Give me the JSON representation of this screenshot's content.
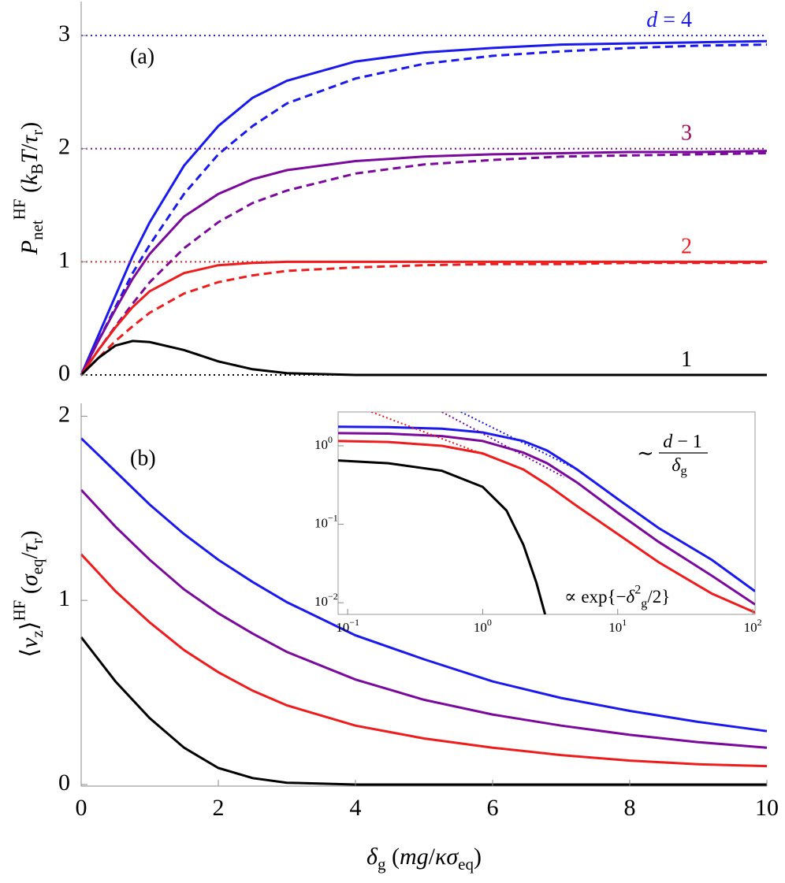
{
  "chart_data": [
    {
      "type": "line",
      "panel_label": "(a)",
      "y_title": [
        {
          "text": "P",
          "style": "italic"
        },
        {
          "text": "net",
          "style": "sub"
        },
        {
          "text": "HF",
          "style": "sup"
        },
        {
          "text": " (",
          "style": "plain"
        },
        {
          "text": "k",
          "style": "italic"
        },
        {
          "text": "B",
          "style": "sub"
        },
        {
          "text": "T",
          "style": "italic"
        },
        {
          "text": "/",
          "style": "plain"
        },
        {
          "text": "τ",
          "style": "italic"
        },
        {
          "text": "r",
          "style": "sub"
        },
        {
          "text": ")",
          "style": "plain"
        }
      ],
      "xlim": [
        0,
        10
      ],
      "ylim": [
        0,
        3.3
      ],
      "yticks": [
        0,
        1,
        2,
        3
      ],
      "x": [
        0,
        0.25,
        0.5,
        0.75,
        1,
        1.5,
        2,
        2.5,
        3,
        4,
        5,
        6,
        7,
        8,
        9,
        10
      ],
      "series": [
        {
          "label": [
            {
              "text": "d",
              "style": "italic"
            },
            {
              "text": " = 4",
              "style": "plain"
            }
          ],
          "color": "#1a1aee",
          "label_color": "#1a1aee",
          "limit": 3,
          "values": [
            0,
            0.35,
            0.7,
            1.05,
            1.35,
            1.85,
            2.2,
            2.45,
            2.6,
            2.77,
            2.85,
            2.89,
            2.92,
            2.93,
            2.94,
            2.95
          ],
          "dashed_values": [
            0,
            0.3,
            0.6,
            0.9,
            1.15,
            1.6,
            1.95,
            2.2,
            2.4,
            2.62,
            2.75,
            2.82,
            2.86,
            2.89,
            2.91,
            2.92
          ]
        },
        {
          "label": [
            {
              "text": "3",
              "style": "plain"
            }
          ],
          "color": "#7b0a9c",
          "label_color": "#9c0a5a",
          "limit": 2,
          "values": [
            0,
            0.3,
            0.58,
            0.85,
            1.07,
            1.4,
            1.6,
            1.73,
            1.81,
            1.89,
            1.93,
            1.95,
            1.96,
            1.97,
            1.97,
            1.98
          ],
          "dashed_values": [
            0,
            0.22,
            0.43,
            0.63,
            0.82,
            1.12,
            1.35,
            1.52,
            1.63,
            1.78,
            1.86,
            1.9,
            1.93,
            1.94,
            1.95,
            1.96
          ]
        },
        {
          "label": [
            {
              "text": "2",
              "style": "plain"
            }
          ],
          "color": "#ee1c1c",
          "label_color": "#ee1c1c",
          "limit": 1,
          "values": [
            0,
            0.22,
            0.42,
            0.6,
            0.74,
            0.9,
            0.97,
            0.99,
            1,
            1,
            1,
            1,
            1,
            1,
            1,
            1
          ],
          "dashed_values": [
            0,
            0.15,
            0.3,
            0.43,
            0.55,
            0.72,
            0.82,
            0.88,
            0.92,
            0.95,
            0.97,
            0.98,
            0.98,
            0.99,
            0.99,
            0.99
          ]
        },
        {
          "label": [
            {
              "text": "1",
              "style": "plain"
            }
          ],
          "color": "#000000",
          "label_color": "#000000",
          "limit": 0,
          "values": [
            0,
            0.15,
            0.26,
            0.3,
            0.29,
            0.22,
            0.12,
            0.05,
            0.015,
            0,
            0,
            0,
            0,
            0,
            0,
            0
          ]
        }
      ]
    },
    {
      "type": "line",
      "panel_label": "(b)",
      "y_title": [
        {
          "text": "⟨",
          "style": "plain"
        },
        {
          "text": "v",
          "style": "italic"
        },
        {
          "text": "z",
          "style": "sub"
        },
        {
          "text": "⟩",
          "style": "plain"
        },
        {
          "text": "HF",
          "style": "sup"
        },
        {
          "text": "  (",
          "style": "plain"
        },
        {
          "text": "σ",
          "style": "italic"
        },
        {
          "text": "eq",
          "style": "sub"
        },
        {
          "text": "/",
          "style": "plain"
        },
        {
          "text": "τ",
          "style": "italic"
        },
        {
          "text": "r",
          "style": "sub"
        },
        {
          "text": ")",
          "style": "plain"
        }
      ],
      "x_title": [
        {
          "text": "δ",
          "style": "italic"
        },
        {
          "text": "g",
          "style": "sub"
        },
        {
          "text": " (",
          "style": "plain"
        },
        {
          "text": "mg",
          "style": "italic"
        },
        {
          "text": "/",
          "style": "plain"
        },
        {
          "text": "κσ",
          "style": "italic"
        },
        {
          "text": "eq",
          "style": "sub"
        },
        {
          "text": ")",
          "style": "plain"
        }
      ],
      "xlim": [
        0,
        10
      ],
      "ylim": [
        0,
        2.07
      ],
      "xticks": [
        0,
        2,
        4,
        6,
        8,
        10
      ],
      "yticks": [
        0,
        1,
        2
      ],
      "x": [
        0,
        0.5,
        1,
        1.5,
        2,
        2.5,
        3,
        4,
        5,
        6,
        7,
        8,
        9,
        10
      ],
      "series": [
        {
          "color": "#1a1aee",
          "values": [
            1.88,
            1.7,
            1.52,
            1.36,
            1.22,
            1.1,
            0.99,
            0.81,
            0.68,
            0.56,
            0.47,
            0.4,
            0.34,
            0.29
          ]
        },
        {
          "color": "#7b0a9c",
          "values": [
            1.6,
            1.4,
            1.22,
            1.06,
            0.93,
            0.82,
            0.72,
            0.57,
            0.46,
            0.38,
            0.32,
            0.27,
            0.23,
            0.2
          ]
        },
        {
          "color": "#ee1c1c",
          "values": [
            1.25,
            1.05,
            0.88,
            0.73,
            0.61,
            0.51,
            0.43,
            0.32,
            0.25,
            0.2,
            0.16,
            0.13,
            0.11,
            0.1
          ]
        },
        {
          "color": "#000000",
          "values": [
            0.8,
            0.56,
            0.36,
            0.2,
            0.09,
            0.035,
            0.01,
            0,
            0,
            0,
            0,
            0,
            0,
            0
          ]
        }
      ]
    },
    {
      "type": "line",
      "log_x": true,
      "log_y": true,
      "xlim": [
        0.085,
        104
      ],
      "ylim": [
        0.0071,
        2.7
      ],
      "xticks": [
        {
          "value": 0.1,
          "label": "10",
          "exponent": "−1"
        },
        {
          "value": 1,
          "label": "10",
          "exponent": "0"
        },
        {
          "value": 10,
          "label": "10",
          "exponent": "1"
        },
        {
          "value": 100,
          "label": "10",
          "exponent": "2"
        }
      ],
      "yticks": [
        {
          "value": 0.01,
          "label": "10",
          "exponent": "−2"
        },
        {
          "value": 0.1,
          "label": "10",
          "exponent": "−1"
        },
        {
          "value": 1,
          "label": "10",
          "exponent": "0"
        }
      ],
      "asymptote_label": {
        "prefix": "∼",
        "numerator": [
          {
            "text": "d",
            "style": "italic"
          },
          {
            "text": " − 1",
            "style": "plain"
          }
        ],
        "denominator": [
          {
            "text": "δ",
            "style": "italic"
          },
          {
            "text": "g",
            "style": "sub"
          }
        ]
      },
      "decay_label": [
        {
          "text": "∝ exp{−",
          "style": "plain"
        },
        {
          "text": "δ",
          "style": "italic"
        },
        {
          "text": "2",
          "style": "sup"
        },
        {
          "text": "g",
          "style": "sub"
        },
        {
          "text": "/2}",
          "style": "plain"
        }
      ],
      "series": [
        {
          "color": "#1a1aee",
          "x": [
            0.085,
            0.2,
            0.5,
            1,
            2,
            3,
            5,
            10,
            20,
            50,
            104
          ],
          "values": [
            1.75,
            1.73,
            1.65,
            1.48,
            1.15,
            0.87,
            0.5,
            0.21,
            0.09,
            0.035,
            0.014
          ],
          "asymptote_x": [
            0.69,
            5
          ],
          "asymptote_y": [
            2.7,
            0.5
          ]
        },
        {
          "color": "#7b0a9c",
          "x": [
            0.085,
            0.2,
            0.5,
            1,
            2,
            3,
            5,
            10,
            20,
            50,
            104
          ],
          "values": [
            1.45,
            1.43,
            1.33,
            1.15,
            0.82,
            0.6,
            0.34,
            0.14,
            0.06,
            0.022,
            0.0095
          ],
          "asymptote_x": [
            0.5,
            4
          ],
          "asymptote_y": [
            2.7,
            0.4
          ]
        },
        {
          "color": "#ee1c1c",
          "x": [
            0.085,
            0.2,
            0.5,
            1,
            2,
            3,
            5,
            10,
            20,
            50,
            104
          ],
          "values": [
            1.15,
            1.12,
            1.0,
            0.8,
            0.5,
            0.32,
            0.17,
            0.075,
            0.033,
            0.013,
            0.0075
          ],
          "asymptote_x": [
            0.15,
            2
          ],
          "asymptote_y": [
            2.7,
            0.5
          ]
        },
        {
          "color": "#000000",
          "x": [
            0.085,
            0.2,
            0.5,
            1,
            1.5,
            2,
            2.5,
            2.9
          ],
          "values": [
            0.65,
            0.6,
            0.48,
            0.3,
            0.15,
            0.055,
            0.018,
            0.0071
          ]
        }
      ]
    }
  ]
}
